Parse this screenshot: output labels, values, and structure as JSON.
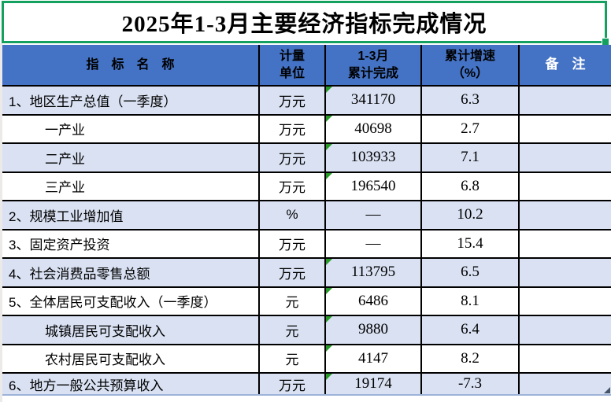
{
  "title": "2025年1-3月主要经济指标完成情况",
  "table": {
    "headers": [
      "指　标　名　称",
      "计量\n单位",
      "1-3月\n累计完成",
      "累计增速\n（%）",
      "备　注"
    ],
    "rows": [
      {
        "name": "1、地区生产总值（一季度）",
        "unit": "万元",
        "completed": "341170",
        "growth": "6.3",
        "remark": "",
        "indent": false,
        "shaded": true,
        "error_triangle": true,
        "corner_marker": false
      },
      {
        "name": "一产业",
        "unit": "万元",
        "completed": "40698",
        "growth": "2.7",
        "remark": "",
        "indent": true,
        "shaded": false,
        "error_triangle": true,
        "corner_marker": false
      },
      {
        "name": "二产业",
        "unit": "万元",
        "completed": "103933",
        "growth": "7.1",
        "remark": "",
        "indent": true,
        "shaded": true,
        "error_triangle": true,
        "corner_marker": false
      },
      {
        "name": "三产业",
        "unit": "万元",
        "completed": "196540",
        "growth": "6.8",
        "remark": "",
        "indent": true,
        "shaded": false,
        "error_triangle": true,
        "corner_marker": false
      },
      {
        "name": "2、规模工业增加值",
        "unit": "%",
        "completed": "—",
        "growth": "10.2",
        "remark": "",
        "indent": false,
        "shaded": true,
        "error_triangle": false,
        "corner_marker": false
      },
      {
        "name": "3、固定资产投资",
        "unit": "万元",
        "completed": "—",
        "growth": "15.4",
        "remark": "",
        "indent": false,
        "shaded": false,
        "error_triangle": false,
        "corner_marker": false
      },
      {
        "name": "4、社会消费品零售总额",
        "unit": "万元",
        "completed": "113795",
        "growth": "6.5",
        "remark": "",
        "indent": false,
        "shaded": true,
        "error_triangle": true,
        "corner_marker": false
      },
      {
        "name": "5、全体居民可支配收入（一季度）",
        "unit": "元",
        "completed": "6486",
        "growth": "8.1",
        "remark": "",
        "indent": false,
        "shaded": false,
        "error_triangle": true,
        "corner_marker": false
      },
      {
        "name": "城镇居民可支配收入",
        "unit": "元",
        "completed": "9880",
        "growth": "6.4",
        "remark": "",
        "indent": true,
        "shaded": true,
        "error_triangle": true,
        "corner_marker": false
      },
      {
        "name": "农村居民可支配收入",
        "unit": "元",
        "completed": "4147",
        "growth": "8.2",
        "remark": "",
        "indent": true,
        "shaded": false,
        "error_triangle": true,
        "corner_marker": false
      },
      {
        "name": "6、地方一般公共预算收入",
        "unit": "万元",
        "completed": "19174",
        "growth": "-7.3",
        "remark": "",
        "indent": false,
        "shaded": true,
        "error_triangle": true,
        "corner_marker": true
      }
    ]
  },
  "icons": {
    "fill_handle": "selection-fill-handle",
    "error_triangle": "error-indicator-icon",
    "corner_marker": "comment-marker-icon"
  },
  "colors": {
    "header_bg": "#4472C4",
    "shaded_row_bg": "#D9E1F2",
    "selection_green": "#14A05F",
    "error_triangle_green": "#279A27",
    "corner_marker_blue": "#44546A",
    "grid_border": "#000000",
    "bottom_gridline": "#9CB2D8",
    "header_text": "#000000",
    "remark_header_text": "#FFFFFF"
  }
}
